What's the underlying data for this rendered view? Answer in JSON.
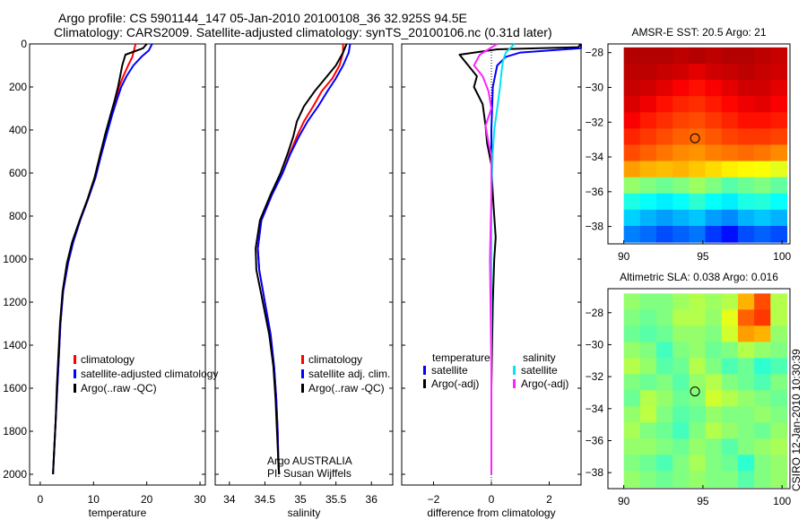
{
  "header": {
    "line1": "Argo profile: CS 5901144_147 05-Jan-2010 20100108_36 32.925S 94.5E",
    "line2": "Climatology: CARS2009. Satellite-adjusted climatology: synTS_20100106.nc (0.31d later)"
  },
  "colors": {
    "climatology": "#ff0000",
    "satellite": "#0000ff",
    "argo": "#000000",
    "salt_sat": "#00e5ee",
    "salt_argo": "#ff22ff"
  },
  "footer": {
    "agency": "Argo AUSTRALIA",
    "pi": "PI: Susan Wijffels",
    "side": "CSIRO 12-Jan-2010 10:30:39"
  },
  "chart_data": [
    {
      "id": "temperature",
      "type": "line",
      "xlabel": "temperature",
      "ylabel": "",
      "xlim": [
        -2,
        31
      ],
      "ylim": [
        2050,
        0
      ],
      "y_inverted": true,
      "xticks": [
        0,
        10,
        20,
        30
      ],
      "yticks": [
        0,
        200,
        400,
        600,
        800,
        1000,
        1200,
        1400,
        1600,
        1800,
        2000
      ],
      "series": [
        {
          "name": "climatology",
          "color": "#ff0000",
          "x": [
            17.9,
            17.6,
            17.3,
            16.5,
            15.6,
            14.8,
            14.3,
            13.3,
            12.3,
            11.2,
            10.3,
            9.0,
            7.5,
            6.2,
            5.2,
            4.3,
            3.8,
            3.5,
            3.2,
            2.9,
            2.7,
            2.5,
            2.4
          ],
          "y": [
            0,
            30,
            60,
            100,
            150,
            200,
            260,
            330,
            420,
            520,
            620,
            720,
            820,
            920,
            1020,
            1150,
            1300,
            1450,
            1600,
            1750,
            1850,
            1950,
            2000
          ]
        },
        {
          "name": "satellite-adjusted climatology",
          "color": "#0000ff",
          "x": [
            21.0,
            20.4,
            19.0,
            17.5,
            16.2,
            15.2,
            14.4,
            13.5,
            12.5,
            11.4,
            10.4,
            9.0,
            7.5,
            6.2,
            5.2,
            4.3,
            3.8,
            3.5,
            3.2,
            2.9,
            2.7,
            2.5,
            2.4
          ],
          "y": [
            0,
            30,
            60,
            100,
            150,
            200,
            260,
            330,
            420,
            520,
            620,
            720,
            820,
            920,
            1020,
            1150,
            1300,
            1450,
            1600,
            1750,
            1850,
            1950,
            2000
          ]
        },
        {
          "name": "Argo(..raw -QC)",
          "color": "#000000",
          "x": [
            20.0,
            19.3,
            16.0,
            15.4,
            15.0,
            14.6,
            14.0,
            13.2,
            12.2,
            11.2,
            10.2,
            8.9,
            7.4,
            6.0,
            5.0,
            4.2,
            3.7,
            3.4,
            3.1,
            2.9,
            2.7,
            2.5,
            2.4
          ],
          "y": [
            0,
            20,
            50,
            100,
            150,
            200,
            260,
            330,
            420,
            520,
            620,
            720,
            820,
            920,
            1020,
            1150,
            1300,
            1450,
            1600,
            1750,
            1850,
            1950,
            2000
          ]
        }
      ],
      "legend": [
        "climatology",
        "satellite-adjusted climatology",
        "Argo(..raw -QC)"
      ]
    },
    {
      "id": "salinity",
      "type": "line",
      "xlabel": "salinity",
      "ylabel": "",
      "xlim": [
        33.8,
        36.3
      ],
      "ylim": [
        2050,
        0
      ],
      "y_inverted": true,
      "xticks": [
        34,
        34.5,
        35,
        35.5,
        36
      ],
      "yticks": [
        0,
        200,
        400,
        600,
        800,
        1000,
        1200,
        1400,
        1600,
        1800,
        2000
      ],
      "series": [
        {
          "name": "climatology",
          "color": "#ff0000",
          "x": [
            35.6,
            35.6,
            35.55,
            35.45,
            35.3,
            35.18,
            35.05,
            34.95,
            34.85,
            34.75,
            34.6,
            34.45,
            34.4,
            34.42,
            34.5,
            34.58,
            34.63,
            34.66,
            34.68,
            34.69,
            34.7
          ],
          "y": [
            0,
            40,
            100,
            160,
            220,
            290,
            360,
            430,
            510,
            600,
            700,
            820,
            950,
            1050,
            1200,
            1350,
            1500,
            1650,
            1800,
            1950,
            2000
          ]
        },
        {
          "name": "satellite adj. clim.",
          "color": "#0000ff",
          "x": [
            35.7,
            35.68,
            35.6,
            35.5,
            35.38,
            35.25,
            35.1,
            34.98,
            34.86,
            34.75,
            34.6,
            34.45,
            34.4,
            34.42,
            34.5,
            34.58,
            34.63,
            34.66,
            34.68,
            34.69,
            34.7
          ],
          "y": [
            0,
            40,
            100,
            160,
            220,
            290,
            360,
            430,
            510,
            600,
            700,
            820,
            950,
            1050,
            1200,
            1350,
            1500,
            1650,
            1800,
            1950,
            2000
          ]
        },
        {
          "name": "Argo(..raw -QC)",
          "color": "#000000",
          "x": [
            35.65,
            35.6,
            35.5,
            35.35,
            35.2,
            35.05,
            34.95,
            34.9,
            34.82,
            34.72,
            34.58,
            34.43,
            34.37,
            34.38,
            34.47,
            34.56,
            34.62,
            34.65,
            34.67,
            34.69,
            34.7
          ],
          "y": [
            0,
            40,
            100,
            160,
            220,
            290,
            360,
            430,
            510,
            600,
            700,
            820,
            950,
            1050,
            1200,
            1350,
            1500,
            1650,
            1800,
            1950,
            2000
          ]
        }
      ],
      "legend": [
        "climatology",
        "satellite adj. clim.",
        "Argo(..raw -QC)"
      ]
    },
    {
      "id": "difference",
      "type": "line",
      "xlabel": "difference from climatology",
      "ylabel": "",
      "xlim": [
        -3.1,
        3.1
      ],
      "ylim": [
        2050,
        0
      ],
      "y_inverted": true,
      "xticks": [
        -2,
        0,
        2
      ],
      "yticks": [
        0,
        200,
        400,
        600,
        800,
        1000,
        1200,
        1400,
        1600,
        1800,
        2000
      ],
      "series": [
        {
          "name": "temperature satellite",
          "color": "#0000ff",
          "x": [
            3.1,
            3.1,
            1.0,
            0.5,
            0.2,
            0.05,
            0.0,
            0.0,
            0.0,
            0.0,
            0.0
          ],
          "y": [
            0,
            20,
            40,
            60,
            100,
            200,
            400,
            800,
            1200,
            1600,
            2000
          ]
        },
        {
          "name": "temperature Argo(-adj)",
          "color": "#000000",
          "x": [
            3.1,
            3.0,
            0.2,
            -1.1,
            -0.8,
            -0.5,
            -0.6,
            -0.3,
            -0.2,
            -0.15,
            0.0,
            0.05,
            0.1,
            0.15,
            0.1,
            0.05,
            0.0,
            0.0
          ],
          "y": [
            0,
            15,
            25,
            50,
            100,
            150,
            200,
            280,
            380,
            460,
            560,
            700,
            800,
            900,
            1000,
            1200,
            1600,
            2000
          ]
        },
        {
          "name": "salinity satellite",
          "color": "#00e5ee",
          "x": [
            0.8,
            0.5,
            0.4,
            0.35,
            0.3,
            0.2,
            0.1,
            0.05,
            0.0,
            0.0,
            0.0
          ],
          "y": [
            0,
            40,
            80,
            130,
            200,
            300,
            400,
            500,
            700,
            1200,
            2000
          ]
        },
        {
          "name": "salinity Argo(-adj)",
          "color": "#ff22ff",
          "x": [
            0.2,
            -0.4,
            -0.6,
            -0.3,
            -0.1,
            0.0,
            -0.2,
            -0.1,
            0.0,
            0.0,
            -0.05,
            0.0,
            0.0
          ],
          "y": [
            0,
            50,
            100,
            150,
            220,
            300,
            380,
            460,
            520,
            700,
            1000,
            1500,
            2000
          ]
        }
      ],
      "legend_titles": [
        "temperature",
        "salinity"
      ],
      "legend": [
        "satellite",
        "Argo(-adj)",
        "satellite",
        "Argo(-adj)"
      ]
    },
    {
      "id": "sst_map",
      "type": "heatmap",
      "title": "AMSR-E SST: 20.5 Argo: 21",
      "xlim": [
        89,
        100.5
      ],
      "ylim": [
        -39,
        -27.5
      ],
      "xticks": [
        90,
        95,
        100
      ],
      "yticks": [
        -28,
        -30,
        -32,
        -34,
        -36,
        -38
      ],
      "data_xlim": [
        90,
        100.3
      ],
      "data_ylim": [
        -38.9,
        -27.7
      ],
      "argo_position": {
        "lon": 94.5,
        "lat": -32.925
      },
      "colorscale": "jet",
      "rows_north_to_south": [
        [
          0.95,
          0.95,
          0.95,
          0.94,
          0.95,
          0.94,
          0.95,
          0.95,
          0.94,
          0.93
        ],
        [
          0.94,
          0.94,
          0.93,
          0.92,
          0.9,
          0.92,
          0.93,
          0.94,
          0.93,
          0.92
        ],
        [
          0.93,
          0.92,
          0.9,
          0.88,
          0.86,
          0.88,
          0.9,
          0.92,
          0.92,
          0.9
        ],
        [
          0.91,
          0.89,
          0.86,
          0.84,
          0.83,
          0.85,
          0.87,
          0.89,
          0.9,
          0.88
        ],
        [
          0.88,
          0.85,
          0.83,
          0.81,
          0.8,
          0.82,
          0.84,
          0.86,
          0.86,
          0.85
        ],
        [
          0.84,
          0.82,
          0.8,
          0.78,
          0.77,
          0.79,
          0.81,
          0.82,
          0.82,
          0.81
        ],
        [
          0.8,
          0.78,
          0.76,
          0.74,
          0.73,
          0.75,
          0.76,
          0.77,
          0.76,
          0.74
        ],
        [
          0.72,
          0.7,
          0.69,
          0.7,
          0.68,
          0.66,
          0.64,
          0.63,
          0.62,
          0.6
        ],
        [
          0.52,
          0.5,
          0.48,
          0.5,
          0.53,
          0.5,
          0.46,
          0.48,
          0.5,
          0.47
        ],
        [
          0.4,
          0.38,
          0.36,
          0.38,
          0.42,
          0.38,
          0.36,
          0.4,
          0.41,
          0.38
        ],
        [
          0.33,
          0.3,
          0.28,
          0.3,
          0.32,
          0.28,
          0.26,
          0.3,
          0.32,
          0.3
        ],
        [
          0.25,
          0.23,
          0.2,
          0.22,
          0.24,
          0.18,
          0.14,
          0.2,
          0.22,
          0.2
        ]
      ]
    },
    {
      "id": "sla_map",
      "type": "heatmap",
      "title": "Altimetric SLA: 0.038 Argo: 0.016",
      "xlim": [
        89,
        100.5
      ],
      "ylim": [
        -39,
        -26.5
      ],
      "xticks": [
        90,
        95,
        100
      ],
      "yticks": [
        -28,
        -30,
        -32,
        -34,
        -36,
        -38
      ],
      "data_xlim": [
        90,
        100.3
      ],
      "data_ylim": [
        -38.9,
        -26.8
      ],
      "argo_position": {
        "lon": 94.5,
        "lat": -32.925
      },
      "colorscale": "jet",
      "rows_north_to_south": [
        [
          0.52,
          0.5,
          0.5,
          0.53,
          0.55,
          0.53,
          0.55,
          0.7,
          0.8,
          0.55
        ],
        [
          0.5,
          0.48,
          0.5,
          0.55,
          0.55,
          0.52,
          0.6,
          0.78,
          0.82,
          0.55
        ],
        [
          0.48,
          0.46,
          0.48,
          0.52,
          0.52,
          0.5,
          0.58,
          0.72,
          0.7,
          0.52
        ],
        [
          0.52,
          0.5,
          0.44,
          0.5,
          0.52,
          0.48,
          0.5,
          0.55,
          0.52,
          0.5
        ],
        [
          0.55,
          0.52,
          0.46,
          0.48,
          0.55,
          0.5,
          0.45,
          0.48,
          0.42,
          0.45
        ],
        [
          0.5,
          0.48,
          0.5,
          0.46,
          0.52,
          0.55,
          0.5,
          0.48,
          0.45,
          0.5
        ],
        [
          0.48,
          0.55,
          0.52,
          0.48,
          0.5,
          0.58,
          0.55,
          0.52,
          0.5,
          0.48
        ],
        [
          0.52,
          0.56,
          0.5,
          0.46,
          0.48,
          0.52,
          0.5,
          0.5,
          0.52,
          0.5
        ],
        [
          0.54,
          0.5,
          0.48,
          0.44,
          0.5,
          0.55,
          0.52,
          0.5,
          0.48,
          0.52
        ],
        [
          0.52,
          0.52,
          0.5,
          0.48,
          0.52,
          0.5,
          0.46,
          0.5,
          0.52,
          0.54
        ],
        [
          0.5,
          0.48,
          0.45,
          0.5,
          0.54,
          0.5,
          0.48,
          0.42,
          0.5,
          0.52
        ],
        [
          0.52,
          0.5,
          0.48,
          0.5,
          0.52,
          0.5,
          0.5,
          0.46,
          0.5,
          0.52
        ]
      ]
    }
  ]
}
